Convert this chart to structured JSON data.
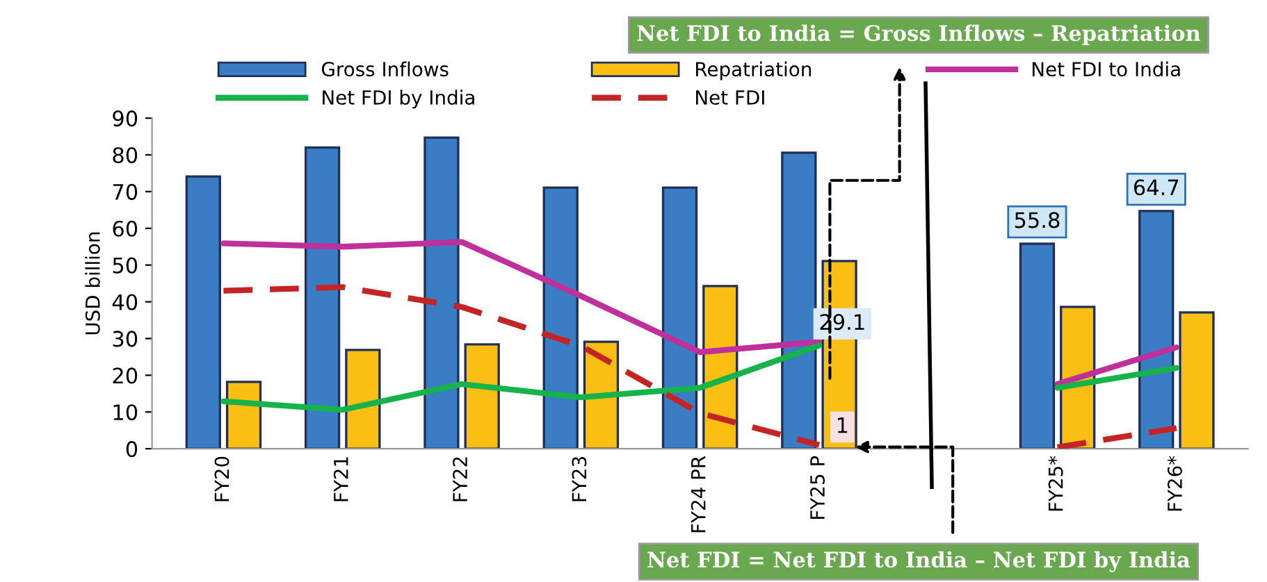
{
  "chart_data": {
    "type": "bar",
    "categories": [
      "FY20",
      "FY21",
      "FY22",
      "FY23",
      "FY24 PR",
      "FY25 P",
      null,
      "FY25*",
      "FY26*"
    ],
    "ylabel": "USD billion",
    "ylim": [
      0,
      90
    ],
    "yticks": [
      0,
      10,
      20,
      30,
      40,
      50,
      60,
      70,
      80,
      90
    ],
    "grid": false,
    "legend": "top",
    "series": [
      {
        "name": "Gross Inflows",
        "color": "#3a7dc4",
        "values": [
          74.1,
          82,
          84.7,
          71.1,
          71.1,
          80.6,
          null,
          55.8,
          64.7
        ],
        "value_labels": [
          null,
          null,
          null,
          null,
          null,
          null,
          null,
          "55.8",
          "64.7"
        ]
      },
      {
        "name": "Repatriation",
        "color": "#fbbf14",
        "values": [
          18.2,
          26.9,
          28.4,
          29.1,
          44.3,
          51.1,
          null,
          38.6,
          37.1
        ]
      },
      {
        "name": "Net FDI to India",
        "type": "line",
        "color": "#c0309a",
        "line_style": "solid",
        "values": [
          55.9,
          55.0,
          56.3,
          41.6,
          26.3,
          29.1,
          null,
          17.6,
          27.6
        ],
        "value_labels": [
          null,
          null,
          null,
          null,
          null,
          "29.1",
          null,
          null,
          null
        ]
      },
      {
        "name": "Net FDI by India",
        "type": "line",
        "color": "#16b34a",
        "line_style": "solid",
        "values": [
          12.9,
          10.6,
          17.6,
          14.0,
          16.6,
          28.1,
          null,
          16.6,
          22.0
        ]
      },
      {
        "name": "Net FDI",
        "type": "line",
        "color": "#c42424",
        "line_style": "dashed",
        "values": [
          43.0,
          44.0,
          38.6,
          28.0,
          9.7,
          1,
          null,
          0.4,
          5.6
        ],
        "value_labels": [
          null,
          null,
          null,
          null,
          null,
          "1",
          null,
          null,
          null
        ]
      }
    ],
    "annotations": [
      "Net FDI to India = Gross Inflows – Repatriation",
      "Net FDI = Net FDI to India – Net FDI by India"
    ]
  }
}
